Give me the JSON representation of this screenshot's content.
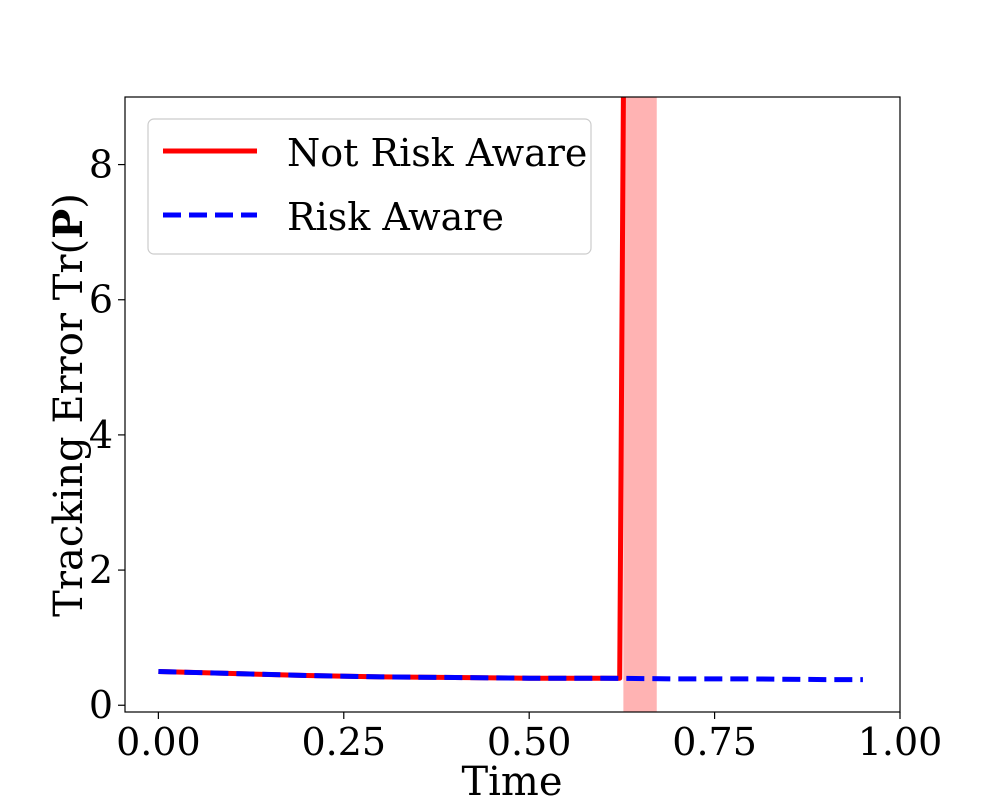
{
  "chart_data": {
    "type": "line",
    "xlabel": "Time",
    "ylabel_prefix": "Tracking Error Tr(",
    "ylabel_bold": "P",
    "ylabel_suffix": ")",
    "xlim": [
      -0.045,
      1.0
    ],
    "ylim": [
      -0.1,
      9.0
    ],
    "xticks": [
      0.0,
      0.25,
      0.5,
      0.75,
      1.0
    ],
    "xtick_labels": [
      "0.00",
      "0.25",
      "0.50",
      "0.75",
      "1.00"
    ],
    "yticks": [
      0,
      2,
      4,
      6,
      8
    ],
    "ytick_labels": [
      "0",
      "2",
      "4",
      "6",
      "8"
    ],
    "grid": false,
    "legend_position": "top-left",
    "shaded_region": {
      "x_start": 0.627,
      "x_end": 0.672,
      "color": "#ffb3b3"
    },
    "series": [
      {
        "name": "Not Risk Aware",
        "style": "solid",
        "color": "#ff0000",
        "x": [
          0.0,
          0.1,
          0.2,
          0.3,
          0.4,
          0.5,
          0.6,
          0.622,
          0.627
        ],
        "y": [
          0.5,
          0.47,
          0.44,
          0.42,
          0.41,
          0.4,
          0.4,
          0.4,
          9.0
        ]
      },
      {
        "name": "Risk Aware",
        "style": "dashed",
        "color": "#0000ff",
        "x": [
          0.0,
          0.1,
          0.2,
          0.3,
          0.4,
          0.5,
          0.6,
          0.7,
          0.8,
          0.9,
          0.95
        ],
        "y": [
          0.5,
          0.47,
          0.44,
          0.42,
          0.41,
          0.4,
          0.4,
          0.39,
          0.39,
          0.38,
          0.38
        ]
      }
    ]
  }
}
